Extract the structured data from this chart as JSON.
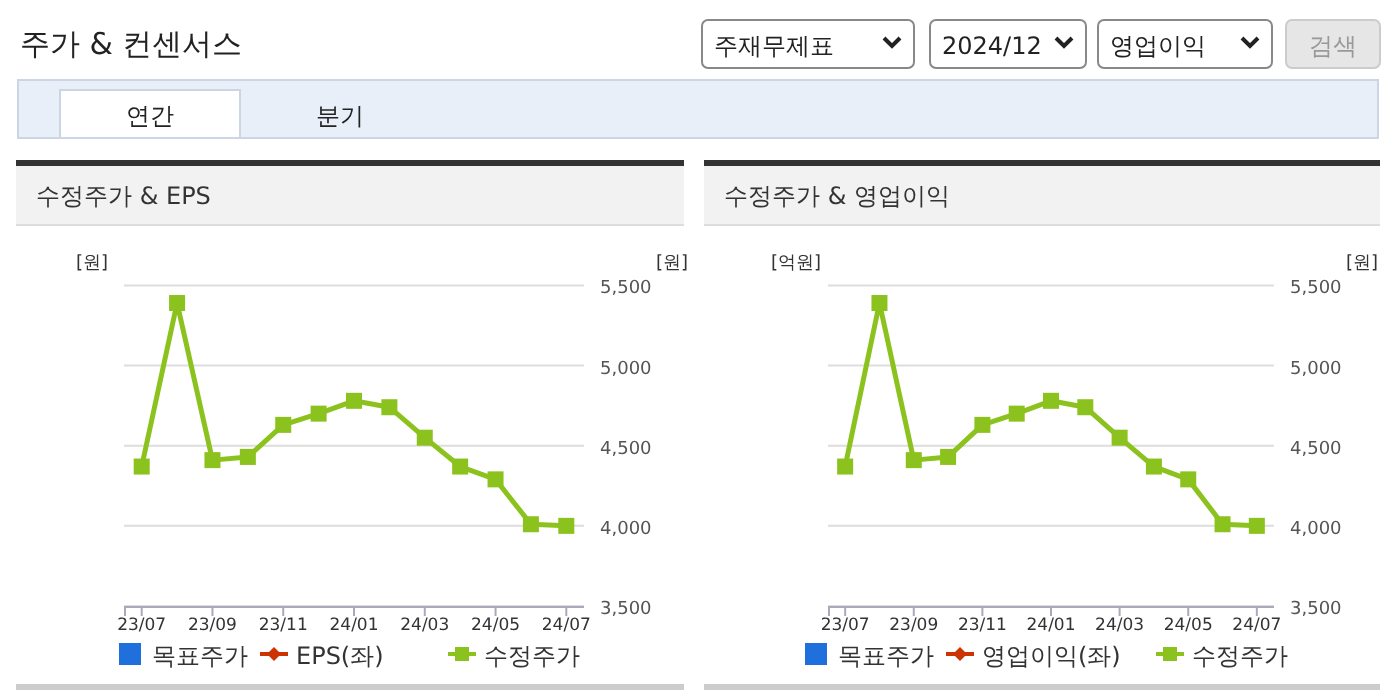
{
  "chart_data": [
    {
      "type": "other",
      "title": "주가 & 컨센서스",
      "annotations": [
        "주재무제표",
        "2024/12",
        "영업이익",
        "검색",
        "연간",
        "분기"
      ]
    },
    {
      "type": "line",
      "title": "수정주가 & EPS",
      "ylabel": "[원]",
      "y2label": "[원]",
      "categories": [
        "23/07",
        null,
        "23/09",
        null,
        "23/11",
        null,
        "24/01",
        null,
        "24/03",
        null,
        "24/05",
        null,
        "24/07"
      ],
      "series": [
        {
          "name": "목표주가",
          "type": "scatter",
          "color": "#1f6fdd",
          "marker": "square",
          "values": [
            null,
            null,
            null,
            null,
            null,
            null,
            null,
            null,
            null,
            null,
            null,
            null,
            null
          ]
        },
        {
          "name": "EPS(좌)",
          "color": "#cc3300",
          "marker": "diamond",
          "values": [
            null,
            null,
            null,
            null,
            null,
            null,
            null,
            null,
            null,
            null,
            null,
            null,
            null
          ]
        },
        {
          "name": "수정주가",
          "color": "#8cc21e",
          "marker": "square",
          "axis": "y2",
          "values": [
            4370,
            5390,
            4410,
            4430,
            4630,
            4700,
            4780,
            4740,
            4550,
            4370,
            4290,
            4010,
            4000
          ]
        }
      ],
      "y2lim": [
        3500,
        5500
      ],
      "y2ticks": [
        {
          "value": 3500,
          "label": "3,500"
        },
        {
          "value": 4000,
          "label": "4,000"
        },
        {
          "value": 4500,
          "label": "4,500"
        },
        {
          "value": 5000,
          "label": "5,000"
        },
        {
          "value": 5500,
          "label": "5,500"
        }
      ],
      "grid": "y",
      "legend": "bottom",
      "tick_labels": "x"
    },
    {
      "type": "line",
      "title": "수정주가 & 영업이익",
      "ylabel": "[억원]",
      "y2label": "[원]",
      "categories": [
        "23/07",
        null,
        "23/09",
        null,
        "23/11",
        null,
        "24/01",
        null,
        "24/03",
        null,
        "24/05",
        null,
        "24/07"
      ],
      "series": [
        {
          "name": "목표주가",
          "type": "scatter",
          "color": "#1f6fdd",
          "marker": "square",
          "values": [
            null,
            null,
            null,
            null,
            null,
            null,
            null,
            null,
            null,
            null,
            null,
            null,
            null
          ]
        },
        {
          "name": "영업이익(좌)",
          "color": "#cc3300",
          "marker": "diamond",
          "values": [
            null,
            null,
            null,
            null,
            null,
            null,
            null,
            null,
            null,
            null,
            null,
            null,
            null
          ]
        },
        {
          "name": "수정주가",
          "color": "#8cc21e",
          "marker": "square",
          "axis": "y2",
          "values": [
            4370,
            5390,
            4410,
            4430,
            4630,
            4700,
            4780,
            4740,
            4550,
            4370,
            4290,
            4010,
            4000
          ]
        }
      ],
      "y2lim": [
        3500,
        5500
      ],
      "y2ticks": [
        {
          "value": 3500,
          "label": "3,500"
        },
        {
          "value": 4000,
          "label": "4,000"
        },
        {
          "value": 4500,
          "label": "4,500"
        },
        {
          "value": 5000,
          "label": "5,000"
        },
        {
          "value": 5500,
          "label": "5,500"
        }
      ],
      "grid": "y",
      "legend": "bottom",
      "tick_labels": "x"
    }
  ]
}
